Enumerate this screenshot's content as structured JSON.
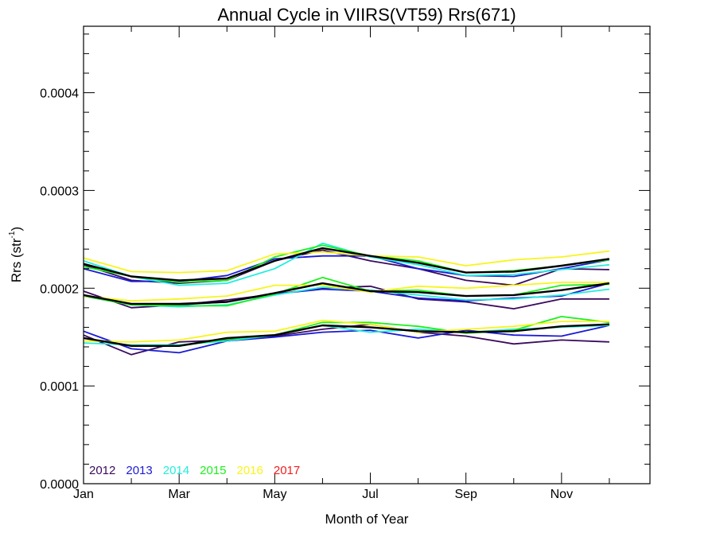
{
  "chart_data": {
    "type": "line",
    "title": "Annual Cycle in VIIRS(VT59) Rrs(671)",
    "xlabel": "Month of Year",
    "ylabel": "Rrs (str",
    "ylabel_sup": "-1",
    "ylabel_end": ")",
    "xlim": [
      1,
      12.85
    ],
    "ylim": [
      0,
      0.000468
    ],
    "xticks": [
      {
        "value": 1,
        "label": "Jan"
      },
      {
        "value": 3,
        "label": "Mar"
      },
      {
        "value": 5,
        "label": "May"
      },
      {
        "value": 7,
        "label": "Jul"
      },
      {
        "value": 9,
        "label": "Sep"
      },
      {
        "value": 11,
        "label": "Nov"
      }
    ],
    "yticks": [
      {
        "value": 0.0,
        "label": "0.0000"
      },
      {
        "value": 0.0001,
        "label": "0.0001"
      },
      {
        "value": 0.0002,
        "label": "0.0002"
      },
      {
        "value": 0.0003,
        "label": "0.0003"
      },
      {
        "value": 0.0004,
        "label": "0.0004"
      }
    ],
    "months": [
      1,
      2,
      3,
      4,
      5,
      6,
      7,
      8,
      9,
      10,
      11,
      12
    ],
    "legend": [
      {
        "name": "2012",
        "color": "#3b0a5e"
      },
      {
        "name": "2013",
        "color": "#1a1ad6"
      },
      {
        "name": "2014",
        "color": "#22eedd"
      },
      {
        "name": "2015",
        "color": "#1cf01c"
      },
      {
        "name": "2016",
        "color": "#f7f51c"
      },
      {
        "name": "2017",
        "color": "#f21c1c"
      }
    ],
    "groups": [
      {
        "group": "upper",
        "series": [
          {
            "year": "2012",
            "values": [
              0.000224,
              0.000208,
              0.000205,
              0.000208,
              0.000228,
              0.000239,
              0.000228,
              0.00022,
              0.000208,
              0.000203,
              0.00022,
              0.000219
            ]
          },
          {
            "year": "2013",
            "values": [
              0.00022,
              0.000207,
              0.000207,
              0.000213,
              0.00023,
              0.000233,
              0.000233,
              0.00022,
              0.000213,
              0.000212,
              0.00022,
              0.000229
            ]
          },
          {
            "year": "2014",
            "values": [
              0.000228,
              0.000212,
              0.000203,
              0.000205,
              0.00022,
              0.000246,
              0.000232,
              0.000224,
              0.000213,
              0.000214,
              0.000219,
              0.000224
            ]
          },
          {
            "year": "2015",
            "values": [
              0.000222,
              0.000212,
              0.000206,
              0.000208,
              0.000232,
              0.000244,
              0.000233,
              0.000228,
              0.000216,
              0.000218,
              0.000223,
              0.000229
            ]
          },
          {
            "year": "2016",
            "values": [
              0.000231,
              0.000217,
              0.000216,
              0.000218,
              0.000235,
              0.000237,
              0.000233,
              0.000232,
              0.000223,
              0.000229,
              0.000232,
              0.000238
            ]
          },
          {
            "year": "mean",
            "values": [
              0.000225,
              0.000212,
              0.000208,
              0.00021,
              0.000228,
              0.000241,
              0.000233,
              0.000226,
              0.000216,
              0.000217,
              0.000223,
              0.00023
            ]
          }
        ]
      },
      {
        "group": "middle",
        "series": [
          {
            "year": "2012",
            "values": [
              0.000197,
              0.00018,
              0.000183,
              0.000188,
              0.000194,
              0.0002,
              0.000202,
              0.000189,
              0.000186,
              0.000179,
              0.000189,
              0.000189
            ]
          },
          {
            "year": "2013",
            "values": [
              0.000192,
              0.000183,
              0.000183,
              0.000186,
              0.000194,
              0.000199,
              0.000197,
              0.00019,
              0.000187,
              0.00019,
              0.000192,
              0.000205
            ]
          },
          {
            "year": "2014",
            "values": [
              0.000193,
              0.000183,
              0.000181,
              0.000183,
              0.000193,
              0.000201,
              0.000198,
              0.000193,
              0.000188,
              0.000189,
              0.000193,
              0.000199
            ]
          },
          {
            "year": "2015",
            "values": [
              0.000192,
              0.000183,
              0.000182,
              0.000182,
              0.000194,
              0.000211,
              0.000197,
              0.000198,
              0.000192,
              0.000193,
              0.000203,
              0.000204
            ]
          },
          {
            "year": "2016",
            "values": [
              0.000192,
              0.000187,
              0.000189,
              0.000192,
              0.000203,
              0.000203,
              0.000196,
              0.000202,
              0.0002,
              0.000203,
              0.000206,
              0.000206
            ]
          },
          {
            "year": "mean",
            "values": [
              0.000193,
              0.000184,
              0.000184,
              0.000186,
              0.000195,
              0.000205,
              0.000197,
              0.000196,
              0.000192,
              0.000193,
              0.000198,
              0.000205
            ]
          }
        ]
      },
      {
        "group": "lower",
        "series": [
          {
            "year": "2012",
            "values": [
              0.000152,
              0.000132,
              0.000145,
              0.000147,
              0.000151,
              0.000158,
              0.000163,
              0.000155,
              0.000151,
              0.000143,
              0.000147,
              0.000145
            ]
          },
          {
            "year": "2013",
            "values": [
              0.000156,
              0.000138,
              0.000134,
              0.000146,
              0.00015,
              0.000155,
              0.000157,
              0.000149,
              0.000157,
              0.000152,
              0.000151,
              0.000162
            ]
          },
          {
            "year": "2014",
            "values": [
              0.000144,
              0.000142,
              0.000142,
              0.000146,
              0.000152,
              0.000162,
              0.000155,
              0.000158,
              0.000155,
              0.000158,
              0.00016,
              0.000162
            ]
          },
          {
            "year": "2015",
            "values": [
              0.000149,
              0.000141,
              0.000141,
              0.000148,
              0.000152,
              0.000165,
              0.000165,
              0.000161,
              0.000154,
              0.000157,
              0.000171,
              0.000165
            ]
          },
          {
            "year": "2016",
            "values": [
              0.000146,
              0.000145,
              0.000147,
              0.000155,
              0.000156,
              0.000167,
              0.000163,
              0.000155,
              0.000158,
              0.000161,
              0.000166,
              0.000166
            ]
          },
          {
            "year": "mean",
            "values": [
              0.000149,
              0.000141,
              0.000141,
              0.000149,
              0.000152,
              0.000162,
              0.00016,
              0.000156,
              0.000155,
              0.000156,
              0.000161,
              0.000163
            ]
          }
        ]
      }
    ],
    "grid": false,
    "legend_position": "bottom-left"
  }
}
